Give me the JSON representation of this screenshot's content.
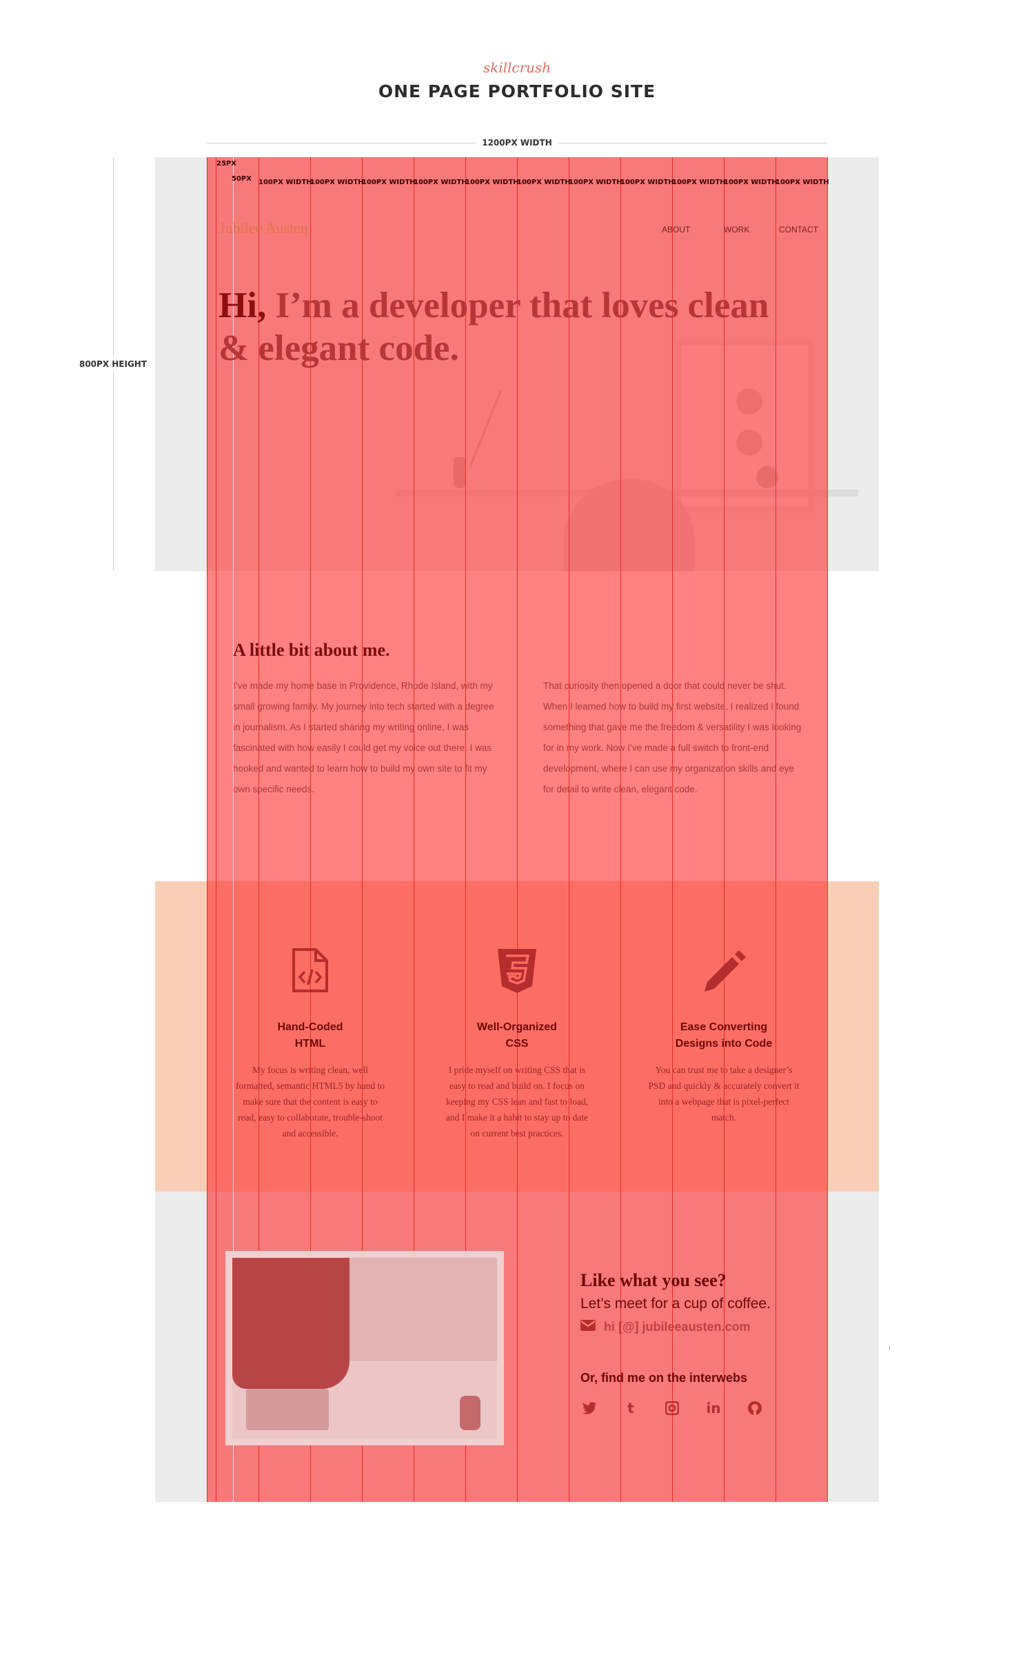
{
  "header": {
    "brand": "skillcrush",
    "title": "ONE PAGE PORTFOLIO SITE",
    "width_label": "1200PX WIDTH",
    "height_label": "800PX HEIGHT"
  },
  "grid": {
    "gutter_label_25": "25PX",
    "gutter_label_50": "50PX",
    "column_label": "100PX WIDTH",
    "columns": [
      "100PX WIDTH",
      "100PX WIDTH",
      "100PX WIDTH",
      "100PX WIDTH",
      "100PX WIDTH",
      "100PX WIDTH",
      "100PX WIDTH",
      "100PX WIDTH",
      "100PX WIDTH",
      "100PX WIDTH",
      "100PX WIDTH",
      "100PX WIDTH"
    ],
    "overlay_color": "#ff2d2d"
  },
  "site": {
    "logo": "Jubilee Austen",
    "nav": [
      "ABOUT",
      "WORK",
      "CONTACT"
    ],
    "hero": {
      "hi": "Hi,",
      "heading_rest": " I’m a developer that loves clean & elegant code."
    },
    "about": {
      "title": "A little bit about me.",
      "col1": "I’ve made my home base in Providence, Rhode Island, with my small growing family. My journey into tech started with a degree in journalism. As I started sharing my writing online, I was fascinated with how easily I could get my voice out there. I was hooked and wanted to learn how to build my own site to fit my own specific needs.",
      "col2": "That curiosity then opened a door that could never be shut. When I learned how to build my first website, I realized I found something that gave me the freedom & versatility I was looking for in my work. Now I’ve made a full switch to front-end development, where I can use my organization skills and eye for detail to write clean, elegant code."
    },
    "skills": [
      {
        "icon": "html-file-icon",
        "title_line1": "Hand-Coded",
        "title_line2": "HTML",
        "text": "My focus is writing clean, well formatted, semantic HTML5 by hand to make sure that the content is easy to read, easy to collaborate, trouble-shoot and accessible."
      },
      {
        "icon": "css3-icon",
        "title_line1": "Well-Organized",
        "title_line2": "CSS",
        "text": "I pride myself on writing CSS that is easy to read and build on. I focus on keeping my CSS lean and fast to load, and I make it a habit to stay up to date on current best practices."
      },
      {
        "icon": "pencil-icon",
        "title_line1": "Ease Converting",
        "title_line2": "Designs into Code",
        "text": "You can trust me to take a designer’s PSD and quickly & accurately convert it into a webpage that is pixel-perfect match."
      }
    ],
    "contact": {
      "title": "Like what you see?",
      "subtitle": "Let’s meet for a cup of coffee.",
      "email": "hi [@] jubileeausten.com",
      "social_title": "Or, find me on the interwebs",
      "social": [
        {
          "name": "twitter-icon",
          "glyph": "🐦"
        },
        {
          "name": "tumblr-icon",
          "glyph": "t"
        },
        {
          "name": "instagram-icon",
          "glyph": "◘"
        },
        {
          "name": "linkedin-icon",
          "glyph": "in"
        },
        {
          "name": "github-icon",
          "glyph": "◉"
        }
      ]
    }
  },
  "colors": {
    "hero_bg": "#ececec",
    "skills_bg": "#f8cfb6",
    "contact_bg": "#ececec",
    "accent": "#e06d5f"
  }
}
